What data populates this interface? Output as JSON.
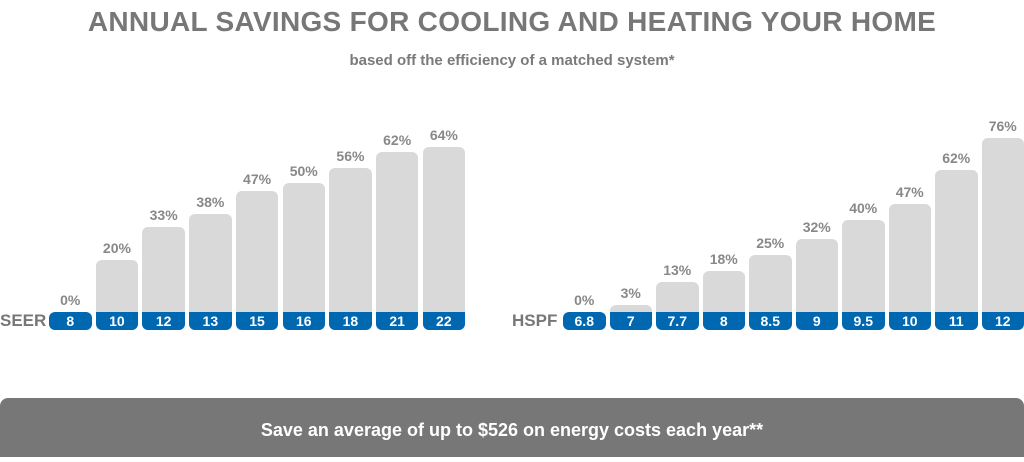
{
  "title": "ANNUAL SAVINGS FOR COOLING AND HEATING YOUR HOME",
  "subtitle": "based off the efficiency of a matched system*",
  "footer": "Save an average of up to $526 on energy costs each year**",
  "colors": {
    "bar": "#d9d9d9",
    "category": "#0067b1",
    "text": "#777777",
    "banner": "#777777"
  },
  "chart_data": [
    {
      "type": "bar",
      "xlabel": "SEER",
      "categories": [
        "8",
        "10",
        "12",
        "13",
        "15",
        "16",
        "18",
        "21",
        "22"
      ],
      "values": [
        0,
        20,
        33,
        38,
        47,
        50,
        56,
        62,
        64
      ],
      "labels": [
        "0%",
        "20%",
        "33%",
        "38%",
        "47%",
        "50%",
        "56%",
        "62%",
        "64%"
      ],
      "unit": "%"
    },
    {
      "type": "bar",
      "xlabel": "HSPF",
      "categories": [
        "6.8",
        "7",
        "7.7",
        "8",
        "8.5",
        "9",
        "9.5",
        "10",
        "11",
        "12"
      ],
      "values": [
        0,
        3,
        13,
        18,
        25,
        32,
        40,
        47,
        62,
        76
      ],
      "labels": [
        "0%",
        "3%",
        "13%",
        "18%",
        "25%",
        "32%",
        "40%",
        "47%",
        "62%",
        "76%"
      ],
      "unit": "%"
    }
  ]
}
